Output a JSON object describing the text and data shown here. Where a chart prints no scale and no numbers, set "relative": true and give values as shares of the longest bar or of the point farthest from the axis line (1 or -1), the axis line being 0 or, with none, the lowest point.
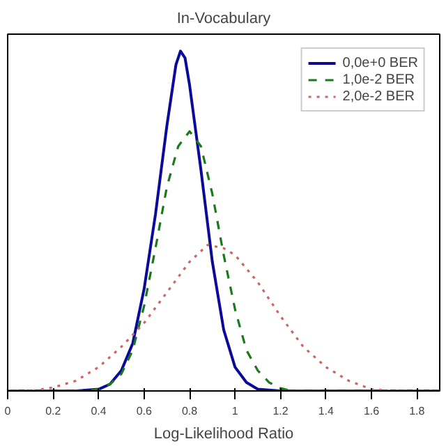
{
  "chart_data": {
    "type": "line",
    "title": "In-Vocabulary",
    "xlabel": "Log-Likelihood Ratio",
    "relative": true,
    "xlim": [
      0,
      1.9
    ],
    "xticks": [
      0,
      0.2,
      0.4,
      0.6,
      0.8,
      1,
      1.2,
      1.4,
      1.6,
      1.8
    ],
    "grid": false,
    "legend": "top right",
    "marker": "none",
    "series": [
      {
        "name": "0,0e+0 BER",
        "color": "#0a0a9a",
        "line_style": "solid",
        "x": [
          0,
          0.3,
          0.4,
          0.45,
          0.5,
          0.55,
          0.6,
          0.65,
          0.7,
          0.74,
          0.76,
          0.78,
          0.8,
          0.85,
          0.9,
          0.95,
          1.0,
          1.05,
          1.1,
          1.2,
          1.9
        ],
        "values": [
          0,
          0,
          0.005,
          0.02,
          0.06,
          0.14,
          0.3,
          0.52,
          0.78,
          0.96,
          1,
          0.98,
          0.9,
          0.65,
          0.38,
          0.18,
          0.07,
          0.025,
          0.005,
          0,
          0
        ]
      },
      {
        "name": "1,0e-2 BER",
        "color": "#1a7a1a",
        "line_style": "dashed",
        "x": [
          0,
          0.35,
          0.4,
          0.45,
          0.5,
          0.55,
          0.6,
          0.65,
          0.7,
          0.75,
          0.8,
          0.85,
          0.9,
          0.95,
          1.0,
          1.05,
          1.1,
          1.15,
          1.2,
          1.25,
          1.9
        ],
        "values": [
          0,
          0,
          0.005,
          0.02,
          0.05,
          0.12,
          0.25,
          0.42,
          0.6,
          0.72,
          0.764,
          0.72,
          0.58,
          0.4,
          0.24,
          0.12,
          0.06,
          0.025,
          0.008,
          0,
          0
        ]
      },
      {
        "name": "2,0e-2 BER",
        "color": "#cc6666",
        "line_style": "dotted",
        "x": [
          0,
          0.1,
          0.2,
          0.3,
          0.4,
          0.5,
          0.6,
          0.7,
          0.8,
          0.88,
          0.95,
          1.0,
          1.1,
          1.2,
          1.3,
          1.4,
          1.5,
          1.6,
          1.7,
          1.9
        ],
        "values": [
          0,
          0,
          0.01,
          0.03,
          0.07,
          0.13,
          0.2,
          0.29,
          0.38,
          0.43,
          0.42,
          0.4,
          0.32,
          0.22,
          0.13,
          0.07,
          0.03,
          0.005,
          0,
          0
        ]
      }
    ]
  }
}
